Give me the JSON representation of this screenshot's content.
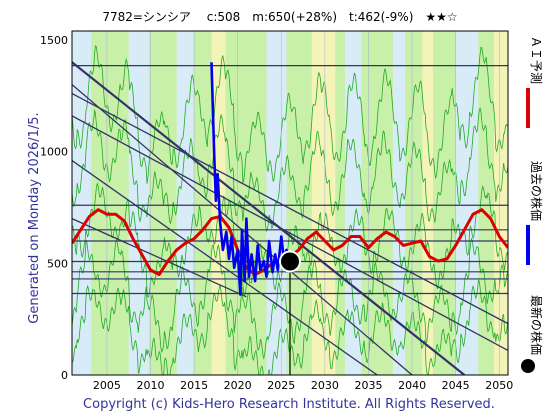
{
  "chart_data": {
    "type": "line",
    "title": "7782=シンシア　 c:508　m:650(+28%)　t:462(-9%)　★★☆",
    "side_label": "Generated on Monday 2026/1/5.",
    "copyright": "Copyright (c) Kids-Hero Research Institute. All Rights Reserved.",
    "xlim": [
      2001,
      2051
    ],
    "ylim": [
      0,
      1540
    ],
    "x_ticks": [
      2005,
      2010,
      2015,
      2020,
      2025,
      2030,
      2035,
      2040,
      2045,
      2050
    ],
    "y_ticks": [
      0,
      500,
      1000,
      1500
    ],
    "grid": true,
    "legend_position": "right",
    "legend": [
      {
        "label": "ＡＩ予測",
        "color": "#dd0000",
        "shape": "line"
      },
      {
        "label": "過去の株価",
        "color": "#0000ee",
        "shape": "line"
      },
      {
        "label": "最新の株価",
        "color": "#000000",
        "shape": "dot"
      }
    ],
    "latest_point": {
      "x": 2026.0,
      "y": 508
    },
    "horizontal_levels": [
      1385,
      760,
      650,
      600,
      508,
      462,
      430,
      365
    ],
    "channel_lines": [
      {
        "x0": 2001,
        "y0": 1400,
        "x1": 2046,
        "y1": 0
      },
      {
        "x0": 2001,
        "y0": 1300,
        "x1": 2040,
        "y1": 0
      },
      {
        "x0": 2001,
        "y0": 1260,
        "x1": 2051,
        "y1": 230
      },
      {
        "x0": 2001,
        "y0": 1160,
        "x1": 2051,
        "y1": 110
      },
      {
        "x0": 2001,
        "y0": 960,
        "x1": 2036,
        "y1": 0
      },
      {
        "x0": 2001,
        "y0": 700,
        "x1": 2021,
        "y1": 350
      }
    ],
    "series": [
      {
        "name": "ＡＩ予測",
        "color": "#dd0000",
        "x": [
          2001,
          2002,
          2003,
          2004,
          2005,
          2006,
          2007,
          2008,
          2009,
          2010,
          2011,
          2012,
          2013,
          2014,
          2015,
          2016,
          2017,
          2018,
          2019,
          2020,
          2021,
          2022,
          2023,
          2024,
          2025,
          2026,
          2027,
          2028,
          2029,
          2030,
          2031,
          2032,
          2033,
          2034,
          2035,
          2036,
          2037,
          2038,
          2039,
          2040,
          2041,
          2042,
          2043,
          2044,
          2045,
          2046,
          2047,
          2048,
          2049,
          2050,
          2051
        ],
        "y": [
          590,
          650,
          710,
          740,
          720,
          720,
          690,
          610,
          540,
          470,
          450,
          510,
          560,
          590,
          610,
          650,
          700,
          710,
          660,
          560,
          480,
          450,
          470,
          500,
          520,
          530,
          560,
          610,
          640,
          600,
          560,
          580,
          620,
          620,
          570,
          610,
          640,
          620,
          580,
          590,
          600,
          530,
          510,
          520,
          580,
          650,
          720,
          740,
          700,
          620,
          570
        ]
      },
      {
        "name": "過去の株価",
        "color": "#0000ee",
        "x": [
          2017.0,
          2017.3,
          2017.5,
          2017.7,
          2018.0,
          2018.3,
          2018.7,
          2019.0,
          2019.3,
          2019.6,
          2020.0,
          2020.3,
          2020.5,
          2020.8,
          2021.0,
          2021.3,
          2021.6,
          2022.0,
          2022.3,
          2022.6,
          2023.0,
          2023.3,
          2023.6,
          2024.0,
          2024.3,
          2024.6,
          2025.0,
          2025.3,
          2025.6,
          2026.0
        ],
        "y": [
          1400,
          1000,
          780,
          900,
          680,
          560,
          640,
          520,
          620,
          480,
          560,
          360,
          650,
          420,
          700,
          440,
          540,
          420,
          580,
          470,
          510,
          440,
          600,
          460,
          540,
          470,
          620,
          520,
          560,
          508
        ]
      }
    ]
  }
}
